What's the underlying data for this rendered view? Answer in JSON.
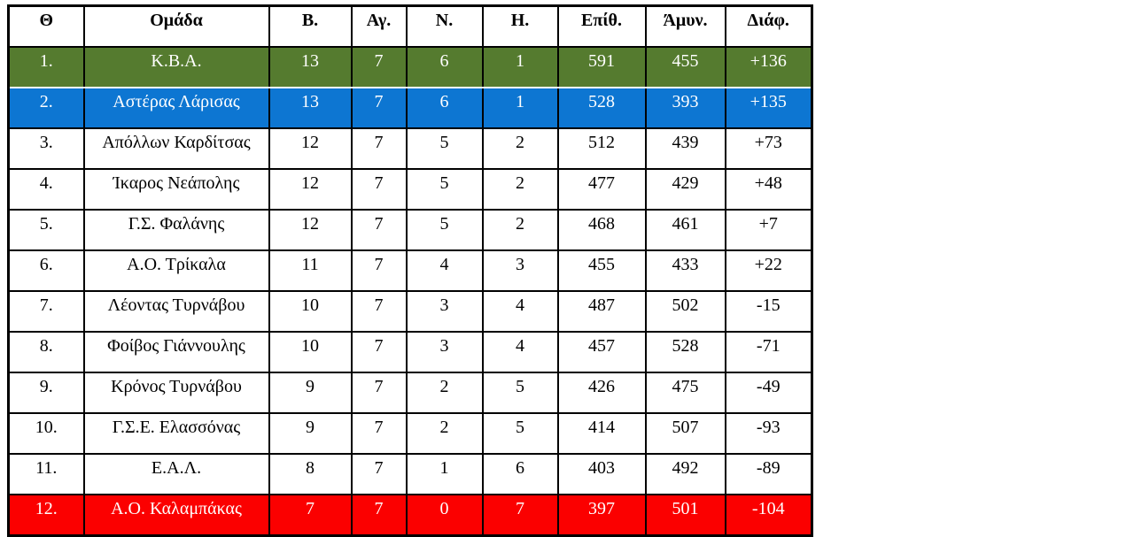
{
  "colors": {
    "green_row": "#557b2f",
    "blue_row": "#0d76d2",
    "red_row": "#fb0000",
    "border_color": "#000000",
    "text_color": "#000000",
    "highlight_text_color": "#ffffff"
  },
  "chart_data": {
    "type": "table",
    "title": "",
    "columns": [
      "Θ",
      "Ομάδα",
      "Β.",
      "Αγ.",
      "Ν.",
      "Η.",
      "Επίθ.",
      "Άμυν.",
      "Διάφ."
    ],
    "rows": [
      {
        "position": "1.",
        "team": "Κ.Β.Α.",
        "points": "13",
        "games": "7",
        "wins": "6",
        "losses": "1",
        "points_for": "591",
        "points_against": "455",
        "diff": "+136",
        "highlight": "green"
      },
      {
        "position": "2.",
        "team": "Αστέρας Λάρισας",
        "points": "13",
        "games": "7",
        "wins": "6",
        "losses": "1",
        "points_for": "528",
        "points_against": "393",
        "diff": "+135",
        "highlight": "blue"
      },
      {
        "position": "3.",
        "team": "Απόλλων Καρδίτσας",
        "points": "12",
        "games": "7",
        "wins": "5",
        "losses": "2",
        "points_for": "512",
        "points_against": "439",
        "diff": "+73",
        "highlight": "none"
      },
      {
        "position": "4.",
        "team": "Ίκαρος Νεάπολης",
        "points": "12",
        "games": "7",
        "wins": "5",
        "losses": "2",
        "points_for": "477",
        "points_against": "429",
        "diff": "+48",
        "highlight": "none"
      },
      {
        "position": "5.",
        "team": "Γ.Σ. Φαλάνης",
        "points": "12",
        "games": "7",
        "wins": "5",
        "losses": "2",
        "points_for": "468",
        "points_against": "461",
        "diff": "+7",
        "highlight": "none"
      },
      {
        "position": "6.",
        "team": "Α.Ο. Τρίκαλα",
        "points": "11",
        "games": "7",
        "wins": "4",
        "losses": "3",
        "points_for": "455",
        "points_against": "433",
        "diff": "+22",
        "highlight": "none"
      },
      {
        "position": "7.",
        "team": "Λέοντας Τυρνάβου",
        "points": "10",
        "games": "7",
        "wins": "3",
        "losses": "4",
        "points_for": "487",
        "points_against": "502",
        "diff": "-15",
        "highlight": "none"
      },
      {
        "position": "8.",
        "team": "Φοίβος Γιάννουλης",
        "points": "10",
        "games": "7",
        "wins": "3",
        "losses": "4",
        "points_for": "457",
        "points_against": "528",
        "diff": "-71",
        "highlight": "none"
      },
      {
        "position": "9.",
        "team": "Κρόνος Τυρνάβου",
        "points": "9",
        "games": "7",
        "wins": "2",
        "losses": "5",
        "points_for": "426",
        "points_against": "475",
        "diff": "-49",
        "highlight": "none"
      },
      {
        "position": "10.",
        "team": "Γ.Σ.Ε. Ελασσόνας",
        "points": "9",
        "games": "7",
        "wins": "2",
        "losses": "5",
        "points_for": "414",
        "points_against": "507",
        "diff": "-93",
        "highlight": "none"
      },
      {
        "position": "11.",
        "team": "Ε.Α.Λ.",
        "points": "8",
        "games": "7",
        "wins": "1",
        "losses": "6",
        "points_for": "403",
        "points_against": "492",
        "diff": "-89",
        "highlight": "none"
      },
      {
        "position": "12.",
        "team": "Α.Ο. Καλαμπάκας",
        "points": "7",
        "games": "7",
        "wins": "0",
        "losses": "7",
        "points_for": "397",
        "points_against": "501",
        "diff": "-104",
        "highlight": "red"
      }
    ]
  }
}
